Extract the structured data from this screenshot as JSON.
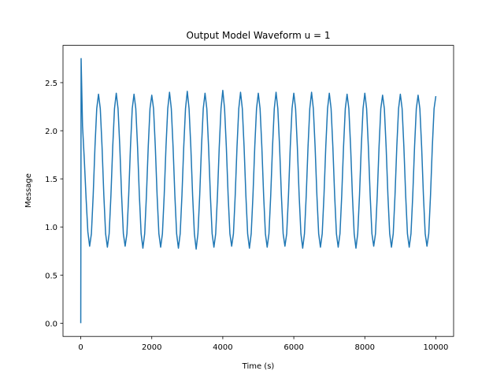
{
  "chart_data": {
    "type": "line",
    "title": "Output Model Waveform u = 1",
    "x_label": "Time (s)",
    "y_label": "Message",
    "x": [
      0,
      10,
      50,
      100,
      150,
      200,
      250,
      300,
      350,
      400,
      450,
      500,
      550,
      600,
      650,
      700,
      750,
      800,
      850,
      900,
      950,
      1000,
      1050,
      1100,
      1150,
      1200,
      1250,
      1300,
      1350,
      1400,
      1450,
      1500,
      1550,
      1600,
      1650,
      1700,
      1750,
      1800,
      1850,
      1900,
      1950,
      2000,
      2050,
      2100,
      2150,
      2200,
      2250,
      2300,
      2350,
      2400,
      2450,
      2500,
      2550,
      2600,
      2650,
      2700,
      2750,
      2800,
      2850,
      2900,
      2950,
      3000,
      3050,
      3100,
      3150,
      3200,
      3250,
      3300,
      3350,
      3400,
      3450,
      3500,
      3550,
      3600,
      3650,
      3700,
      3750,
      3800,
      3850,
      3900,
      3950,
      4000,
      4050,
      4100,
      4150,
      4200,
      4250,
      4300,
      4350,
      4400,
      4450,
      4500,
      4550,
      4600,
      4650,
      4700,
      4750,
      4800,
      4850,
      4900,
      4950,
      5000,
      5050,
      5100,
      5150,
      5200,
      5250,
      5300,
      5350,
      5400,
      5450,
      5500,
      5550,
      5600,
      5650,
      5700,
      5750,
      5800,
      5850,
      5900,
      5950,
      6000,
      6050,
      6100,
      6150,
      6200,
      6250,
      6300,
      6350,
      6400,
      6450,
      6500,
      6550,
      6600,
      6650,
      6700,
      6750,
      6800,
      6850,
      6900,
      6950,
      7000,
      7050,
      7100,
      7150,
      7200,
      7250,
      7300,
      7350,
      7400,
      7450,
      7500,
      7550,
      7600,
      7650,
      7700,
      7750,
      7800,
      7850,
      7900,
      7950,
      8000,
      8050,
      8100,
      8150,
      8200,
      8250,
      8300,
      8350,
      8400,
      8450,
      8500,
      8550,
      8600,
      8650,
      8700,
      8750,
      8800,
      8850,
      8900,
      8950,
      9000,
      9050,
      9100,
      9150,
      9200,
      9250,
      9300,
      9350,
      9400,
      9450,
      9500,
      9550,
      9600,
      9650,
      9700,
      9750,
      9800,
      9850,
      9900,
      9950,
      10000
    ],
    "series": [
      {
        "name": "Message",
        "color": "#1f77b4",
        "values": [
          0,
          2.75,
          2.05,
          1.7,
          1.3,
          0.95,
          0.8,
          0.93,
          1.33,
          1.83,
          2.23,
          2.38,
          2.23,
          1.83,
          1.33,
          0.93,
          0.79,
          0.93,
          1.33,
          1.83,
          2.23,
          2.39,
          2.23,
          1.83,
          1.33,
          0.93,
          0.8,
          0.93,
          1.33,
          1.83,
          2.23,
          2.38,
          2.23,
          1.83,
          1.33,
          0.93,
          0.78,
          0.93,
          1.33,
          1.83,
          2.23,
          2.37,
          2.23,
          1.83,
          1.33,
          0.93,
          0.79,
          0.93,
          1.33,
          1.83,
          2.23,
          2.4,
          2.23,
          1.83,
          1.33,
          0.93,
          0.78,
          0.93,
          1.33,
          1.83,
          2.23,
          2.41,
          2.23,
          1.83,
          1.33,
          0.93,
          0.77,
          0.93,
          1.33,
          1.83,
          2.23,
          2.39,
          2.23,
          1.83,
          1.33,
          0.93,
          0.79,
          0.93,
          1.33,
          1.83,
          2.23,
          2.42,
          2.23,
          1.83,
          1.33,
          0.93,
          0.8,
          0.93,
          1.33,
          1.83,
          2.23,
          2.4,
          2.23,
          1.83,
          1.33,
          0.93,
          0.78,
          0.93,
          1.33,
          1.83,
          2.23,
          2.39,
          2.23,
          1.83,
          1.33,
          0.93,
          0.79,
          0.93,
          1.33,
          1.83,
          2.23,
          2.4,
          2.23,
          1.83,
          1.33,
          0.93,
          0.8,
          0.93,
          1.33,
          1.83,
          2.23,
          2.39,
          2.23,
          1.83,
          1.33,
          0.93,
          0.78,
          0.93,
          1.33,
          1.83,
          2.23,
          2.4,
          2.23,
          1.83,
          1.33,
          0.93,
          0.79,
          0.93,
          1.33,
          1.83,
          2.23,
          2.39,
          2.23,
          1.83,
          1.33,
          0.93,
          0.79,
          0.93,
          1.33,
          1.83,
          2.23,
          2.38,
          2.23,
          1.83,
          1.33,
          0.93,
          0.78,
          0.93,
          1.33,
          1.83,
          2.23,
          2.39,
          2.23,
          1.83,
          1.33,
          0.93,
          0.8,
          0.93,
          1.33,
          1.83,
          2.23,
          2.37,
          2.23,
          1.83,
          1.33,
          0.93,
          0.79,
          0.93,
          1.33,
          1.83,
          2.23,
          2.38,
          2.23,
          1.83,
          1.33,
          0.93,
          0.79,
          0.93,
          1.33,
          1.83,
          2.23,
          2.37,
          2.23,
          1.83,
          1.33,
          0.93,
          0.8,
          0.93,
          1.33,
          1.83,
          2.23,
          2.36
        ]
      }
    ],
    "xlim": [
      -500,
      10500
    ],
    "ylim": [
      -0.1375,
      2.8875
    ],
    "xticks": [
      0,
      2000,
      4000,
      6000,
      8000,
      10000
    ],
    "yticks": [
      {
        "value": 0,
        "label": "0.0"
      },
      {
        "value": 0.5,
        "label": "0.5"
      },
      {
        "value": 1,
        "label": "1.0"
      },
      {
        "value": 1.5,
        "label": "1.5"
      },
      {
        "value": 2,
        "label": "2.0"
      },
      {
        "value": 2.5,
        "label": "2.5"
      }
    ]
  }
}
